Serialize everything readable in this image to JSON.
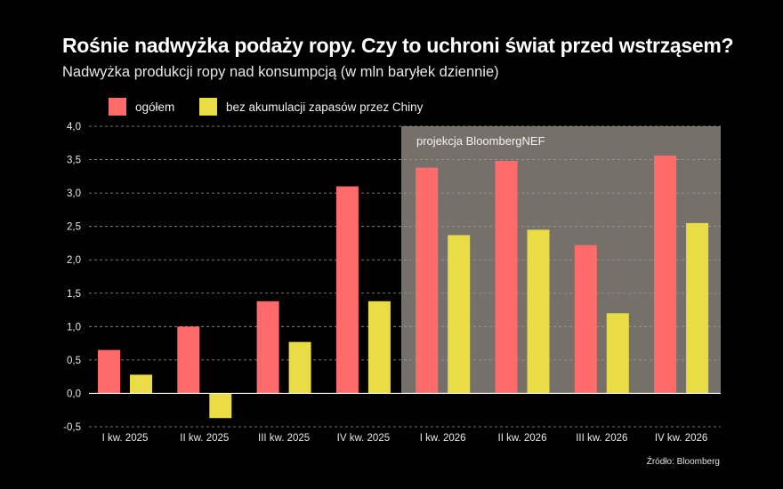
{
  "title": "Rośnie nadwyżka podaży ropy. Czy to uchroni świat przed wstrząsem?",
  "subtitle": "Nadwyżka produkcji ropy nad konsumpcją (w mln baryłek dziennie)",
  "source": "Źródło: Bloomberg",
  "colors": {
    "background": "#000000",
    "series_total": "#ff6b6b",
    "series_ex_china": "#e9dc45",
    "projection_band": "#75716a",
    "gridline": "#9a9a9a"
  },
  "chart_data": {
    "type": "bar",
    "categories": [
      "I kw. 2025",
      "II kw. 2025",
      "III kw. 2025",
      "IV kw. 2025",
      "I kw. 2026",
      "II kw. 2026",
      "III kw. 2026",
      "IV kw. 2026"
    ],
    "series": [
      {
        "name": "ogółem",
        "values": [
          0.65,
          1.0,
          1.38,
          3.1,
          3.38,
          3.48,
          2.22,
          3.56
        ]
      },
      {
        "name": "bez akumulacji zapasów przez Chiny",
        "values": [
          0.28,
          -0.37,
          0.77,
          1.38,
          2.37,
          2.45,
          1.2,
          2.55
        ]
      }
    ],
    "ylim": [
      -0.5,
      4.0
    ],
    "yticks": [
      "4,0",
      "3,5",
      "3,0",
      "2,5",
      "2,0",
      "1,5",
      "1,0",
      "0,5",
      "0,0",
      "-0,5"
    ],
    "ytick_values": [
      4.0,
      3.5,
      3.0,
      2.5,
      2.0,
      1.5,
      1.0,
      0.5,
      0.0,
      -0.5
    ],
    "grid": "horizontal dashed",
    "legend_position": "top-left",
    "projection": {
      "label": "projekcja BloombergNEF",
      "from_category": "I kw. 2026",
      "to_category": "IV kw. 2026"
    }
  }
}
